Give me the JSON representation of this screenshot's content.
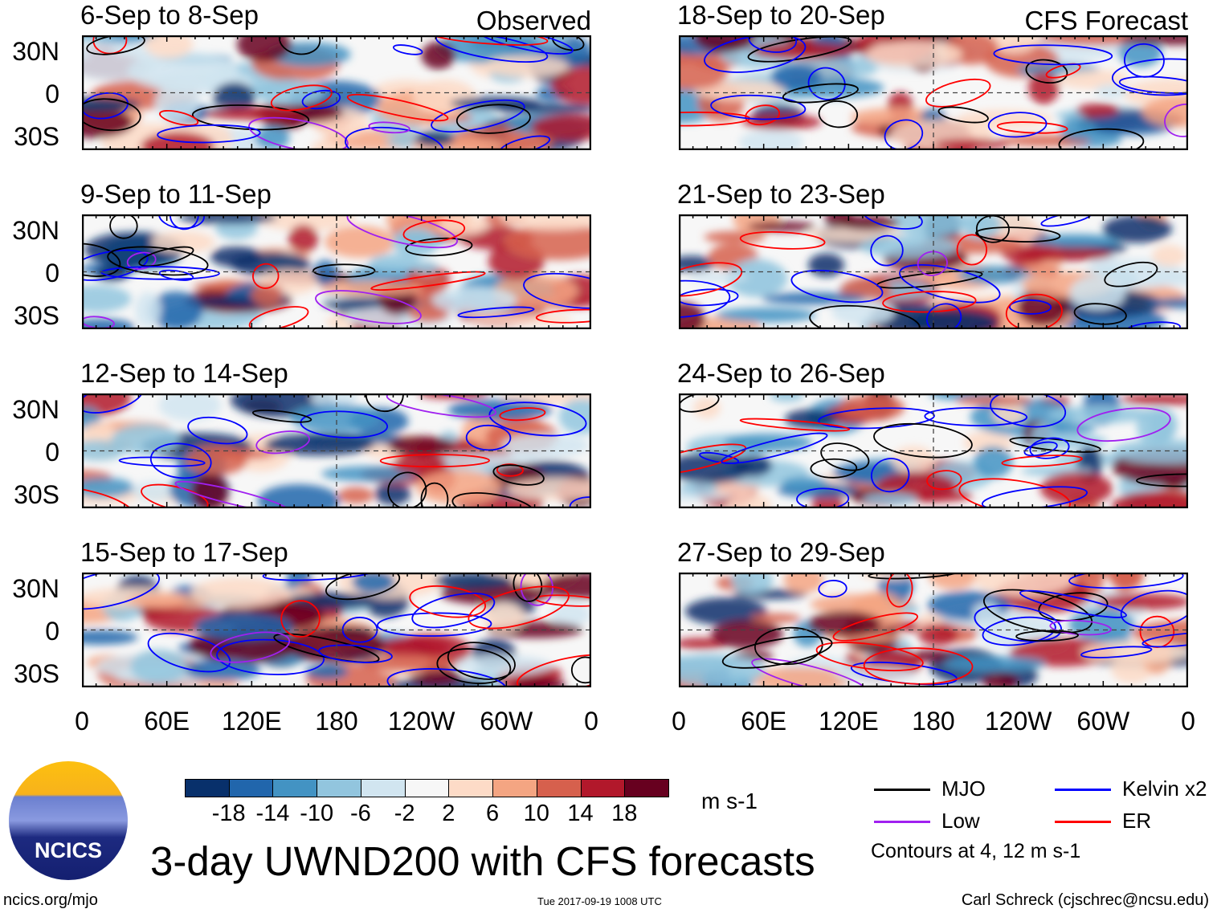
{
  "panels_left": [
    {
      "title": "6-Sep to 8-Sep",
      "tag": "Observed"
    },
    {
      "title": "9-Sep to 11-Sep"
    },
    {
      "title": "12-Sep to 14-Sep"
    },
    {
      "title": "15-Sep to 17-Sep"
    }
  ],
  "panels_right": [
    {
      "title": "18-Sep to 20-Sep",
      "tag": "CFS Forecast"
    },
    {
      "title": "21-Sep to 23-Sep"
    },
    {
      "title": "24-Sep to 26-Sep"
    },
    {
      "title": "27-Sep to 29-Sep"
    }
  ],
  "chart_data": {
    "type": "heatmap",
    "title": "3-day UWND200 with CFS forecasts",
    "units": "m s-1",
    "x_ticks": [
      "0",
      "60E",
      "120E",
      "180",
      "120W",
      "60W",
      "0"
    ],
    "y_ticks": [
      "30N",
      "0",
      "30S"
    ],
    "colorbar": {
      "levels": [
        "-18",
        "-14",
        "-10",
        "-6",
        "-2",
        "2",
        "6",
        "10",
        "14",
        "18"
      ],
      "colors": [
        "#08306b",
        "#2166ac",
        "#4393c3",
        "#92c5de",
        "#d1e5f0",
        "#f7f7f7",
        "#fddbc7",
        "#f4a582",
        "#d6604d",
        "#b2182b",
        "#67001f"
      ]
    },
    "legend": [
      {
        "name": "MJO",
        "color": "#000000"
      },
      {
        "name": "Kelvin x2",
        "color": "#0000ff"
      },
      {
        "name": "Low",
        "color": "#a020f0"
      },
      {
        "name": "ER",
        "color": "#ff0000"
      }
    ],
    "contour_note": "Contours at 4, 12 m s-1"
  },
  "footer": {
    "logo_text": "NCICS",
    "url": "ncics.org/mjo",
    "timestamp": "Tue 2017-09-19 1008 UTC",
    "author": "Carl Schreck (cjschrec@ncsu.edu)"
  }
}
